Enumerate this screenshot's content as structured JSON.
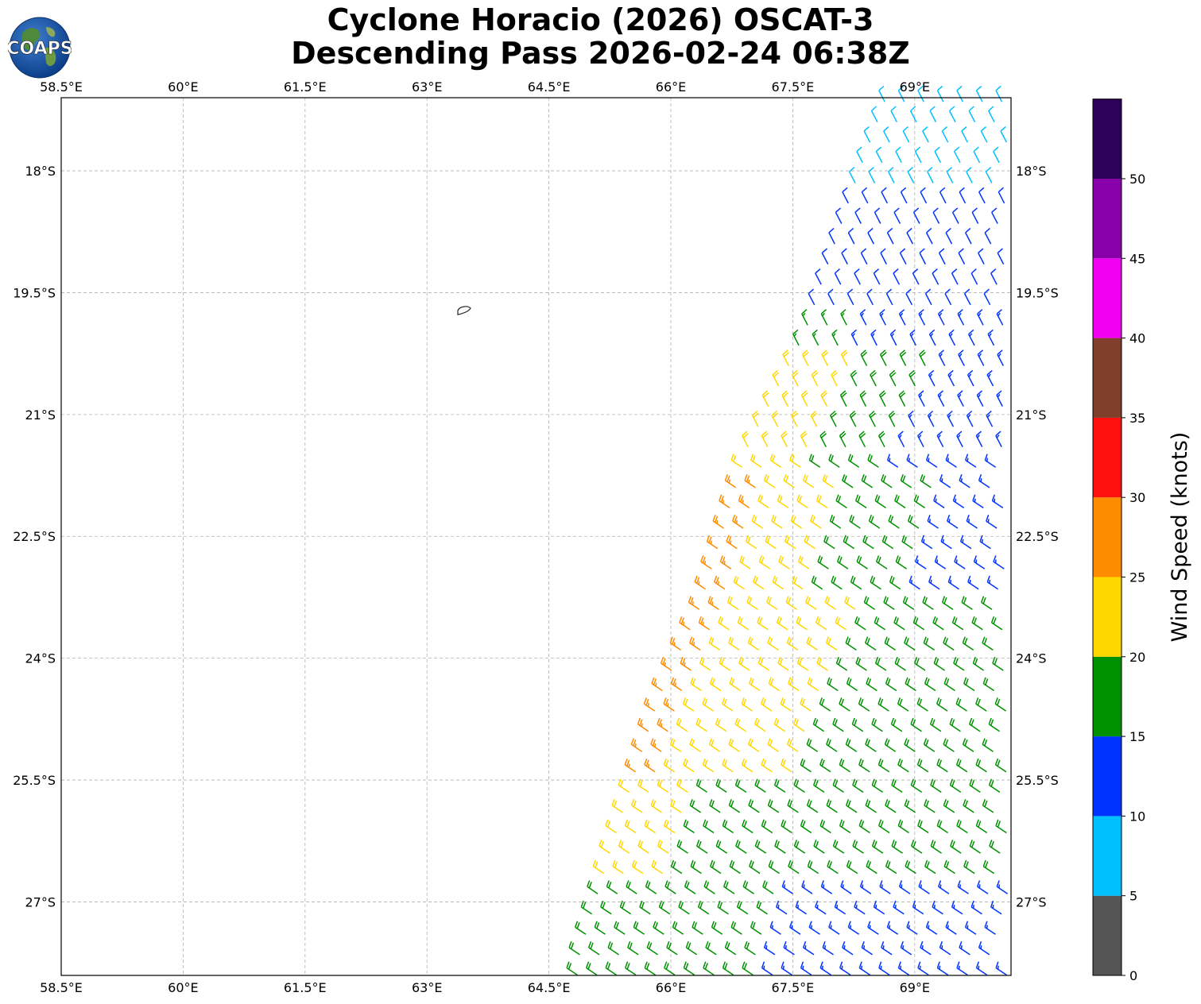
{
  "header": {
    "title_line1": "Cyclone Horacio (2026) OSCAT-3",
    "title_line2": "Descending Pass 2026-02-24 06:38Z"
  },
  "logo": {
    "text": "COAPS",
    "icon": "globe-logo-icon"
  },
  "map": {
    "lon_range": [
      58.5,
      70.2
    ],
    "lat_range": [
      -28.2,
      -17.1
    ],
    "lon_ticks": [
      "58.5°E",
      "60°E",
      "61.5°E",
      "63°E",
      "64.5°E",
      "66°E",
      "67.5°E",
      "69°E"
    ],
    "lat_ticks": [
      "18°S",
      "19.5°S",
      "21°S",
      "22.5°S",
      "24°S",
      "25.5°S",
      "27°S"
    ],
    "grid": true,
    "island_outline": true
  },
  "wind_barbs": {
    "description_hidden": true,
    "swath_edge": [
      [
        64.8,
        -27.75
      ],
      [
        65.2,
        -26.4
      ],
      [
        65.8,
        -24.5
      ],
      [
        66.3,
        -23.4
      ],
      [
        66.9,
        -21.4
      ],
      [
        67.6,
        -20.0
      ],
      [
        68.2,
        -18.2
      ],
      [
        68.6,
        -17.1
      ]
    ],
    "color_by_speed": true
  },
  "colorbar": {
    "title": "Wind Speed (knots)",
    "ticks": [
      "0",
      "5",
      "10",
      "15",
      "20",
      "25",
      "30",
      "35",
      "40",
      "45",
      "50"
    ],
    "bins": [
      {
        "from": 0,
        "to": 5,
        "color": "#555555"
      },
      {
        "from": 5,
        "to": 10,
        "color": "#00bfff"
      },
      {
        "from": 10,
        "to": 15,
        "color": "#0033ff"
      },
      {
        "from": 15,
        "to": 20,
        "color": "#009100"
      },
      {
        "from": 20,
        "to": 25,
        "color": "#ffd700"
      },
      {
        "from": 25,
        "to": 30,
        "color": "#ff8c00"
      },
      {
        "from": 30,
        "to": 35,
        "color": "#ff1010"
      },
      {
        "from": 35,
        "to": 40,
        "color": "#7f3f2a"
      },
      {
        "from": 40,
        "to": 45,
        "color": "#f000f0"
      },
      {
        "from": 45,
        "to": 50,
        "color": "#8800aa"
      },
      {
        "from": 50,
        "to": 55,
        "color": "#2d0059"
      }
    ]
  }
}
